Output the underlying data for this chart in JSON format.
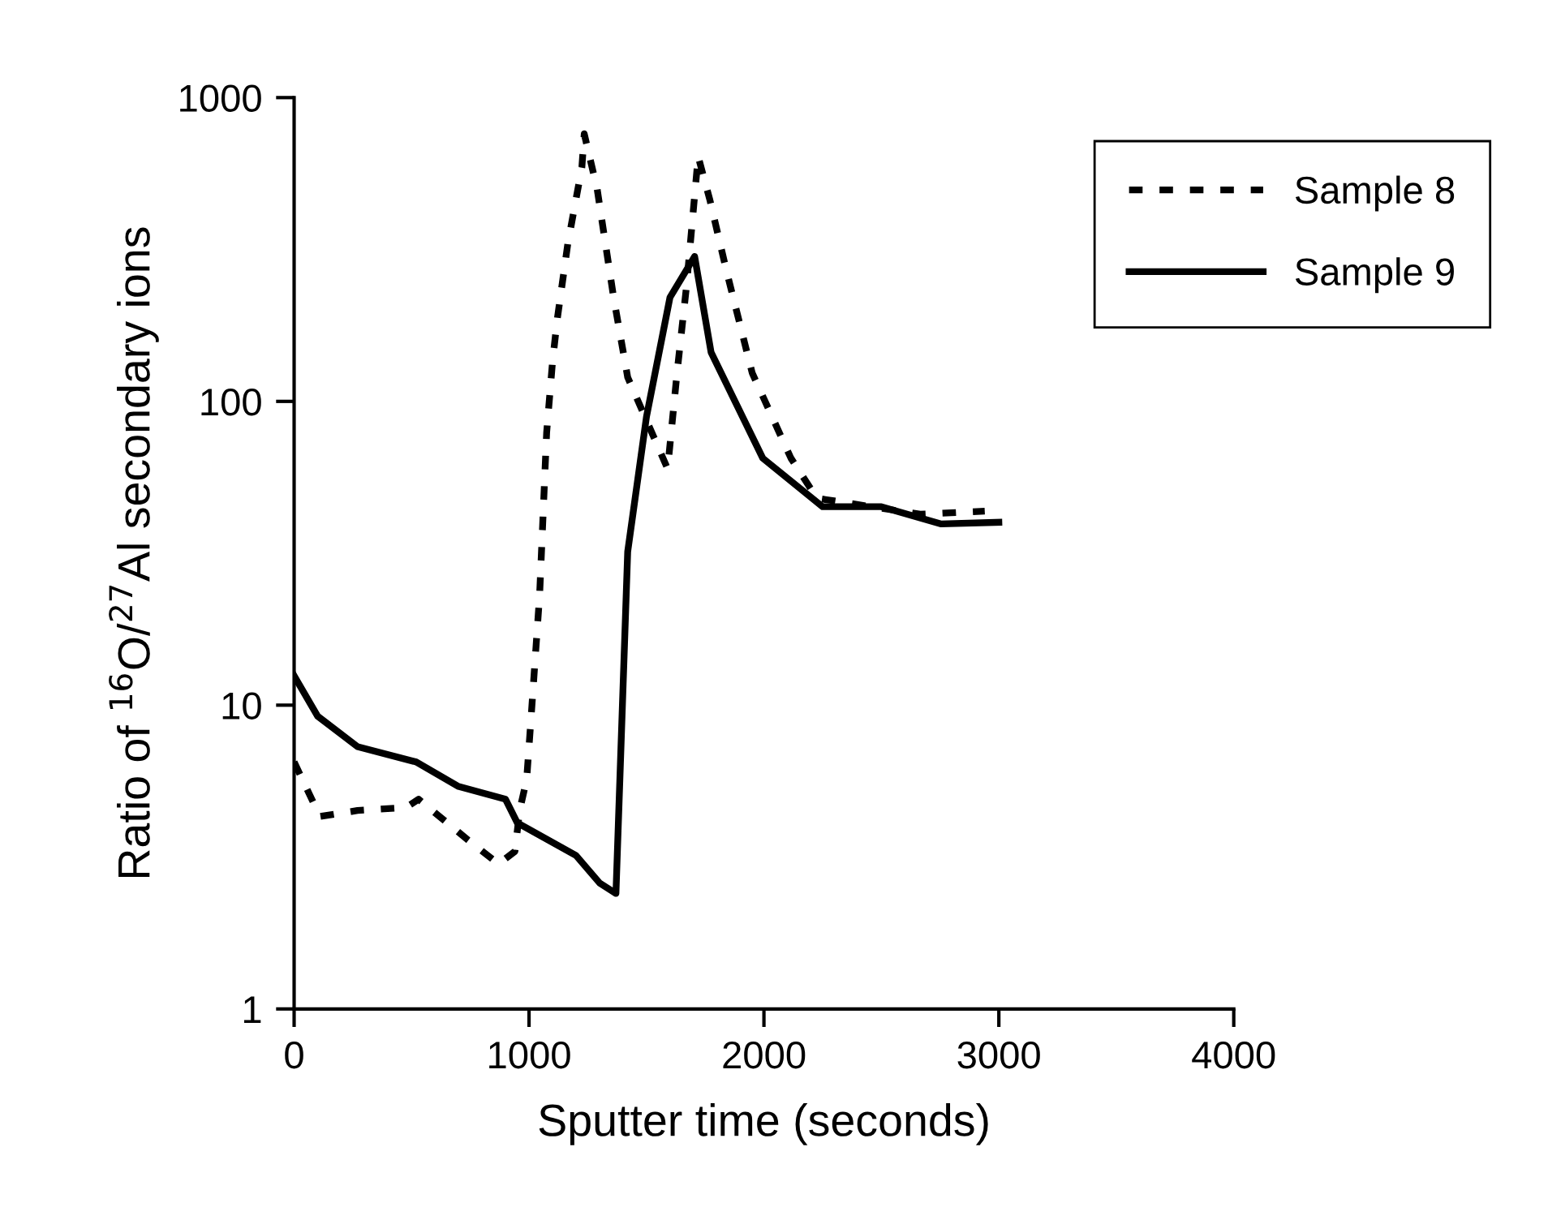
{
  "chart_data": {
    "type": "line",
    "xlabel": "Sputter time (seconds)",
    "ylabel": "Ratio of $^{16}$O/$^{27}$Al secondary ions",
    "log": "y",
    "xlim": [
      0,
      4000
    ],
    "xticks": [
      0,
      1000,
      2000,
      3000,
      4000
    ],
    "ylim": [
      1,
      1000
    ],
    "yticks": [
      1,
      10,
      100,
      1000
    ],
    "grid": false,
    "legend": "top right",
    "marker": "none",
    "series": [
      {
        "name": "Sample 8",
        "color": "#000000",
        "line_style": "dotted",
        "x": [
          0,
          110,
          270,
          475,
          530,
          740,
          870,
          940,
          960,
          990,
          1010,
          1045,
          1075,
          1100,
          1120,
          1165,
          1225,
          1235,
          1290,
          1360,
          1420,
          1590,
          1630,
          1670,
          1720,
          1770,
          1840,
          1950,
          2115,
          2225,
          2665,
          2940
        ],
        "values": [
          6.5,
          4.3,
          4.5,
          4.6,
          4.9,
          3.6,
          3.0,
          3.3,
          4.5,
          5.7,
          9.4,
          23,
          79,
          135,
          186,
          330,
          590,
          760,
          500,
          220,
          120,
          60,
          124,
          238,
          640,
          460,
          270,
          124,
          65,
          48,
          42.5,
          43.5
        ]
      },
      {
        "name": "Sample 9",
        "color": "#000000",
        "line_style": "solid",
        "x": [
          0,
          100,
          270,
          520,
          700,
          900,
          950,
          1200,
          1300,
          1370,
          1420,
          1500,
          1600,
          1705,
          1775,
          1995,
          2250,
          2500,
          2755,
          3000
        ],
        "values": [
          12.5,
          9.2,
          7.3,
          6.5,
          5.4,
          4.9,
          4.1,
          3.2,
          2.6,
          2.4,
          32,
          89,
          220,
          300,
          145,
          65,
          45,
          45,
          39.5,
          40
        ]
      }
    ]
  }
}
